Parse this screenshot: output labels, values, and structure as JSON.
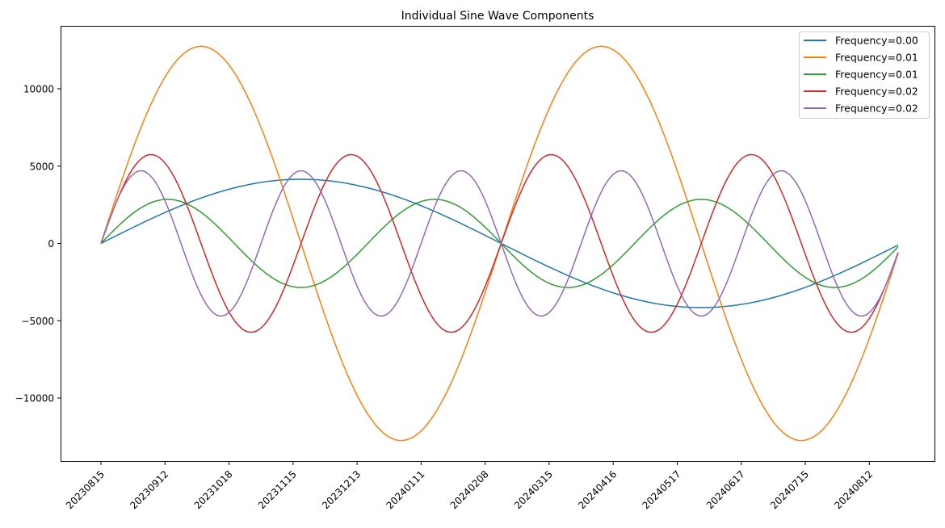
{
  "chart_data": {
    "type": "line",
    "title": "Individual Sine Wave Components",
    "xlabel": "",
    "ylabel": "",
    "ylim": [
      -14000,
      14000
    ],
    "n_points": 250,
    "x_tick_step": 20,
    "x_tick_labels": [
      "20230815",
      "20230912",
      "20231018",
      "20231115",
      "20231213",
      "20240111",
      "20240208",
      "20240315",
      "20240416",
      "20240517",
      "20240617",
      "20240715",
      "20240812"
    ],
    "y_ticks": [
      -10000,
      -5000,
      0,
      5000,
      10000
    ],
    "y_tick_labels": [
      "−10000",
      "−5000",
      "0",
      "5000",
      "10000"
    ],
    "grid": false,
    "legend_placement": "top-right",
    "series": [
      {
        "name": "Frequency=0.00",
        "color": "#1f77b4",
        "amplitude": 4150,
        "cycles": 1
      },
      {
        "name": "Frequency=0.01",
        "color": "#ff7f0e",
        "amplitude": 12750,
        "cycles": 2
      },
      {
        "name": "Frequency=0.01",
        "color": "#2ca02c",
        "amplitude": 2850,
        "cycles": 3
      },
      {
        "name": "Frequency=0.02",
        "color": "#d62728",
        "amplitude": 5750,
        "cycles": 4
      },
      {
        "name": "Frequency=0.02",
        "color": "#9467bd",
        "amplitude": 4700,
        "cycles": 5
      }
    ]
  }
}
